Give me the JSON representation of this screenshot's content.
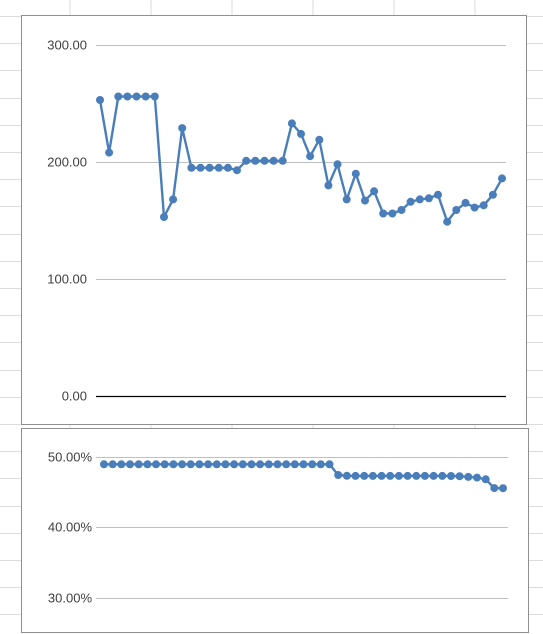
{
  "chart_data": [
    {
      "type": "line",
      "title": "",
      "xlabel": "",
      "ylabel": "",
      "ylim": [
        0,
        300
      ],
      "y_ticks": [
        "0.00",
        "100.00",
        "200.00",
        "300.00"
      ],
      "grid": true,
      "color": "#4a7ebb",
      "series": [
        {
          "values": [
            253,
            208,
            256,
            256,
            256,
            256,
            256,
            153,
            168,
            229,
            195,
            195,
            195,
            195,
            195,
            193,
            201,
            201,
            201,
            201,
            201,
            233,
            224,
            205,
            219,
            180,
            198,
            168,
            190,
            167,
            175,
            156,
            156,
            159,
            166,
            168,
            169,
            172,
            149,
            159,
            165,
            161,
            163,
            172,
            186
          ]
        }
      ]
    },
    {
      "type": "line",
      "title": "",
      "xlabel": "",
      "ylabel": "",
      "ylim": [
        0.3,
        0.5
      ],
      "y_ticks": [
        "30.00%",
        "40.00%",
        "50.00%"
      ],
      "grid": true,
      "color": "#4a7ebb",
      "series": [
        {
          "values": [
            0.4897,
            0.4897,
            0.4897,
            0.4897,
            0.4897,
            0.4897,
            0.4897,
            0.4897,
            0.4897,
            0.4897,
            0.4897,
            0.4897,
            0.4897,
            0.4897,
            0.4897,
            0.4897,
            0.4897,
            0.4897,
            0.4897,
            0.4897,
            0.4897,
            0.4897,
            0.4897,
            0.4897,
            0.4897,
            0.4897,
            0.4897,
            0.4744,
            0.4734,
            0.4732,
            0.4732,
            0.4732,
            0.4732,
            0.4732,
            0.4732,
            0.4732,
            0.4732,
            0.4732,
            0.4732,
            0.4732,
            0.473,
            0.4727,
            0.4718,
            0.4708,
            0.4683,
            0.4559,
            0.4557
          ]
        }
      ]
    }
  ]
}
